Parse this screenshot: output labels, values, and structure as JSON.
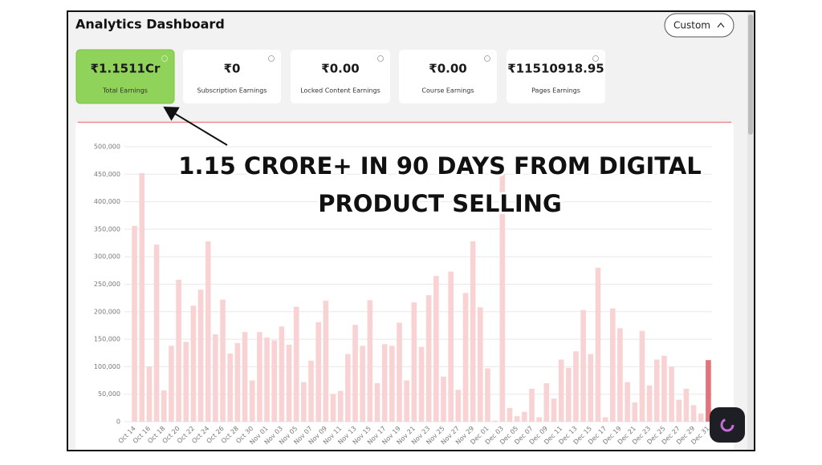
{
  "header": {
    "title": "Analytics Dashboard",
    "range_button": "Custom"
  },
  "cards": [
    {
      "value": "₹1.1511Cr",
      "label": "Total Earnings"
    },
    {
      "value": "₹0",
      "label": "Subscription Earnings"
    },
    {
      "value": "₹0.00",
      "label": "Locked Content Earnings"
    },
    {
      "value": "₹0.00",
      "label": "Course Earnings"
    },
    {
      "value": "₹11510918.95",
      "label": "Pages Earnings"
    }
  ],
  "chart_data": {
    "type": "bar",
    "categories": [
      "Oct 14",
      null,
      "Oct 16",
      null,
      "Oct 18",
      null,
      "Oct 20",
      null,
      "Oct 22",
      null,
      "Oct 24",
      null,
      "Oct 26",
      null,
      "Oct 28",
      null,
      "Oct 30",
      null,
      "Nov 01",
      null,
      "Nov 03",
      null,
      "Nov 05",
      null,
      "Nov 07",
      null,
      "Nov 09",
      null,
      "Nov 11",
      null,
      "Nov 13",
      null,
      "Nov 15",
      null,
      "Nov 17",
      null,
      "Nov 19",
      null,
      "Nov 21",
      null,
      "Nov 23",
      null,
      "Nov 25",
      null,
      "Nov 27",
      null,
      "Nov 29",
      null,
      "Dec 01",
      null,
      "Dec 03",
      null,
      "Dec 05",
      null,
      "Dec 07",
      null,
      "Dec 09",
      null,
      "Dec 11",
      null,
      "Dec 13",
      null,
      "Dec 15",
      null,
      "Dec 17",
      null,
      "Dec 19",
      null,
      "Dec 21",
      null,
      "Dec 23",
      null,
      "Dec 25",
      null,
      "Dec 27",
      null,
      "Dec 29",
      null,
      "Dec 31"
    ],
    "values": [
      356000,
      452000,
      100000,
      322000,
      57000,
      138000,
      258000,
      145000,
      211000,
      240000,
      328000,
      159000,
      222000,
      124000,
      143000,
      163000,
      75000,
      163000,
      153000,
      148000,
      173000,
      140000,
      209000,
      72000,
      111000,
      181000,
      220000,
      50000,
      56000,
      123000,
      176000,
      138000,
      221000,
      70000,
      141000,
      138000,
      180000,
      75000,
      217000,
      136000,
      230000,
      265000,
      82000,
      273000,
      58000,
      234000,
      328000,
      208000,
      97000,
      2000,
      470000,
      25000,
      10000,
      18000,
      60000,
      8000,
      70000,
      42000,
      113000,
      98000,
      128000,
      203000,
      123000,
      280000,
      8000,
      206000,
      170000,
      72000,
      35000,
      165000,
      66000,
      113000,
      120000,
      100000,
      40000,
      60000,
      30000,
      15000,
      112000
    ],
    "color": "#f9d2d4",
    "latest_color": "#e2737a",
    "ylim": [
      0,
      500000
    ],
    "yticks": [
      0,
      {
        "value": 50000,
        "label": "50,000"
      },
      {
        "value": 100000,
        "label": "100,000"
      },
      {
        "value": 150000,
        "label": "150,000"
      },
      {
        "value": 200000,
        "label": "200,000"
      },
      {
        "value": 250000,
        "label": "250,000"
      },
      {
        "value": 300000,
        "label": "300,000"
      },
      {
        "value": 350000,
        "label": "350,000"
      },
      {
        "value": 400000,
        "label": "400,000"
      },
      {
        "value": 450000,
        "label": "450,000"
      },
      {
        "value": 500000,
        "label": "500,000"
      }
    ],
    "grid": true
  },
  "annotation": {
    "lines": [
      "1.15 CRORE+ IN 90 DAYS FROM DIGITAL",
      "PRODUCT SELLING"
    ]
  }
}
